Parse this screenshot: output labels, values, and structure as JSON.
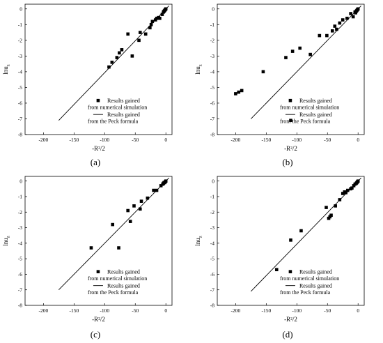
{
  "chart_data": [
    {
      "type": "scatter",
      "panel_label": "(a)",
      "xlabel": "-R²/2",
      "ylabel": "lnu",
      "ylabel_sub": "z",
      "xlim": [
        -230,
        10
      ],
      "ylim": [
        -8,
        0.3
      ],
      "xticks": [
        -200,
        -150,
        -100,
        -50,
        0
      ],
      "xtick_labels": [
        "-200",
        "-150",
        "-100",
        "-50",
        "0"
      ],
      "yticks": [
        0,
        -1,
        -2,
        -3,
        -4,
        -5,
        -6,
        -7,
        -8
      ],
      "ytick_labels": [
        "0",
        "-1",
        "-2",
        "-3",
        "-4",
        "-5",
        "-6",
        "-7",
        "-8"
      ],
      "grid": false,
      "legend_position": "lower-right",
      "series": [
        {
          "name": "Results gained from numerical simulation",
          "legend_lines": [
            "Results gained",
            "from numerical simulation"
          ],
          "kind": "scatter",
          "marker": "square",
          "x": [
            -93,
            -88,
            -80,
            -76,
            -72,
            -62,
            -55,
            -44,
            -42,
            -33,
            -26,
            -24,
            -22,
            -17,
            -15,
            -12,
            -10,
            -6,
            -4,
            -3,
            -2,
            -1,
            0
          ],
          "y": [
            -3.7,
            -3.4,
            -3.1,
            -2.8,
            -2.6,
            -1.6,
            -3.0,
            -2.0,
            -1.5,
            -1.6,
            -1.2,
            -1.0,
            -0.8,
            -0.7,
            -0.6,
            -0.55,
            -0.6,
            -0.35,
            -0.2,
            -0.15,
            -0.1,
            -0.05,
            0
          ]
        },
        {
          "name": "Results gained from the Peck formula",
          "legend_lines": [
            "Results gained",
            "from the Peck formula"
          ],
          "kind": "line",
          "x": [
            -175,
            5
          ],
          "y": [
            -7.1,
            0.2
          ]
        }
      ]
    },
    {
      "type": "scatter",
      "panel_label": "(b)",
      "xlabel": "-R²/2",
      "ylabel": "lnu",
      "ylabel_sub": "z",
      "xlim": [
        -230,
        10
      ],
      "ylim": [
        -8,
        0.3
      ],
      "xticks": [
        -200,
        -150,
        -100,
        -50,
        0
      ],
      "xtick_labels": [
        "-200",
        "-150",
        "-100",
        "-50",
        "0"
      ],
      "yticks": [
        0,
        -1,
        -2,
        -3,
        -4,
        -5,
        -6,
        -7,
        -8
      ],
      "ytick_labels": [
        "0",
        "-1",
        "-2",
        "-3",
        "-4",
        "-5",
        "-6",
        "-7",
        "-8"
      ],
      "grid": false,
      "legend_position": "lower-right",
      "series": [
        {
          "name": "Results gained from numerical simulation",
          "legend_lines": [
            "Results gained",
            "from numerical simulation"
          ],
          "kind": "scatter",
          "marker": "square",
          "x": [
            -200,
            -195,
            -190,
            -155,
            -118,
            -110,
            -107,
            -95,
            -78,
            -63,
            -51,
            -42,
            -38,
            -35,
            -30,
            -25,
            -18,
            -12,
            -8,
            -5,
            -4,
            -3,
            -2,
            -1,
            0
          ],
          "y": [
            -5.4,
            -5.3,
            -5.2,
            -4.0,
            -3.1,
            -7.1,
            -2.7,
            -2.5,
            -2.9,
            -1.7,
            -1.7,
            -1.4,
            -1.1,
            -1.3,
            -0.9,
            -0.7,
            -0.6,
            -0.3,
            -0.5,
            -0.2,
            -0.25,
            -0.15,
            -0.1,
            -0.05,
            0
          ]
        },
        {
          "name": "Results gained from the Peck formula",
          "legend_lines": [
            "Results gained",
            "from the Peck formula"
          ],
          "kind": "line",
          "x": [
            -175,
            5
          ],
          "y": [
            -7.0,
            0.2
          ]
        }
      ]
    },
    {
      "type": "scatter",
      "panel_label": "(c)",
      "xlabel": "-R²/2",
      "ylabel": "lnu",
      "ylabel_sub": "z",
      "xlim": [
        -230,
        10
      ],
      "ylim": [
        -8,
        0.3
      ],
      "xticks": [
        -200,
        -150,
        -100,
        -50,
        0
      ],
      "xtick_labels": [
        "-200",
        "-150",
        "-100",
        "-50",
        "0"
      ],
      "yticks": [
        0,
        -1,
        -2,
        -3,
        -4,
        -5,
        -6,
        -7,
        -8
      ],
      "ytick_labels": [
        "0",
        "-1",
        "-2",
        "-3",
        "-4",
        "-5",
        "-6",
        "-7",
        "-8"
      ],
      "grid": false,
      "legend_position": "lower-right",
      "series": [
        {
          "name": "Results gained from numerical simulation",
          "legend_lines": [
            "Results gained",
            "from numerical simulation"
          ],
          "kind": "scatter",
          "marker": "square",
          "x": [
            -122,
            -87,
            -77,
            -62,
            -58,
            -52,
            -42,
            -40,
            -30,
            -20,
            -15,
            -8,
            -5,
            -4,
            -3,
            -2,
            -1,
            0
          ],
          "y": [
            -4.3,
            -2.8,
            -4.3,
            -1.9,
            -2.6,
            -1.6,
            -1.8,
            -1.3,
            -1.1,
            -0.6,
            -0.6,
            -0.3,
            -0.2,
            -0.15,
            -0.1,
            -0.1,
            -0.05,
            0
          ]
        },
        {
          "name": "Results gained from the Peck formula",
          "legend_lines": [
            "Results gained",
            "from the Peck formula"
          ],
          "kind": "line",
          "x": [
            -175,
            5
          ],
          "y": [
            -7.0,
            0.2
          ]
        }
      ]
    },
    {
      "type": "scatter",
      "panel_label": "(d)",
      "xlabel": "-R²/2",
      "ylabel": "lnu",
      "ylabel_sub": "z",
      "xlim": [
        -230,
        10
      ],
      "ylim": [
        -8,
        0.3
      ],
      "xticks": [
        -200,
        -150,
        -100,
        -50,
        0
      ],
      "xtick_labels": [
        "-200",
        "-150",
        "-100",
        "-50",
        "0"
      ],
      "yticks": [
        0,
        -1,
        -2,
        -3,
        -4,
        -5,
        -6,
        -7,
        -8
      ],
      "ytick_labels": [
        "0",
        "-1",
        "-2",
        "-3",
        "-4",
        "-5",
        "-6",
        "-7",
        "-8"
      ],
      "grid": false,
      "legend_position": "lower-right",
      "series": [
        {
          "name": "Results gained from numerical simulation",
          "legend_lines": [
            "Results gained",
            "from numerical simulation"
          ],
          "kind": "scatter",
          "marker": "square",
          "x": [
            -133,
            -110,
            -93,
            -52,
            -48,
            -46,
            -44,
            -37,
            -30,
            -25,
            -22,
            -20,
            -17,
            -12,
            -10,
            -7,
            -5,
            -3,
            -2,
            -1,
            0
          ],
          "y": [
            -5.7,
            -3.8,
            -3.2,
            -1.7,
            -2.4,
            -2.3,
            -2.2,
            -1.6,
            -1.2,
            -0.8,
            -0.7,
            -0.75,
            -0.6,
            -0.5,
            -0.45,
            -0.3,
            -0.2,
            -0.15,
            -0.1,
            -0.05,
            0
          ]
        },
        {
          "name": "Results gained from the Peck formula",
          "legend_lines": [
            "Results gained",
            "from the Peck formula"
          ],
          "kind": "line",
          "x": [
            -175,
            5
          ],
          "y": [
            -7.1,
            0.2
          ]
        }
      ]
    }
  ]
}
